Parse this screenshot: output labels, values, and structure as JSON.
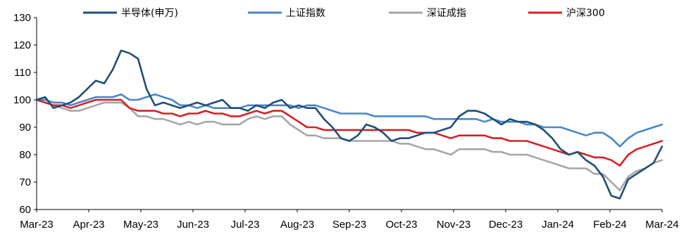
{
  "chart_data": {
    "type": "line",
    "title": "",
    "xlabel": "",
    "ylabel": "",
    "ylim": [
      60,
      130
    ],
    "yticks": [
      60,
      70,
      80,
      90,
      100,
      110,
      120,
      130
    ],
    "x_tick_labels": [
      "Mar-23",
      "Apr-23",
      "May-23",
      "Jun-23",
      "Jul-23",
      "Aug-23",
      "Sep-23",
      "Oct-23",
      "Nov-23",
      "Dec-23",
      "Jan-24",
      "Feb-24",
      "Mar-24"
    ],
    "grid": false,
    "legend_position": "top",
    "series": [
      {
        "name": "半导体(申万)",
        "color": "#1f4e79",
        "values": [
          100,
          101,
          97,
          98,
          99,
          101,
          104,
          107,
          106,
          111,
          118,
          117,
          115,
          104,
          98,
          99,
          98,
          97,
          98,
          99,
          98,
          99,
          100,
          97,
          97,
          96,
          98,
          97,
          99,
          100,
          97,
          98,
          97,
          97,
          93,
          90,
          86,
          85,
          87,
          91,
          90,
          88,
          85,
          86,
          86,
          87,
          88,
          88,
          89,
          90,
          94,
          96,
          96,
          95,
          93,
          91,
          93,
          92,
          92,
          91,
          89,
          86,
          82,
          80,
          81,
          78,
          76,
          72,
          65,
          64,
          71,
          73,
          75,
          77,
          83
        ]
      },
      {
        "name": "上证指数",
        "color": "#4a86c8",
        "values": [
          100,
          100,
          99,
          99,
          98,
          99,
          100,
          101,
          101,
          101,
          102,
          100,
          100,
          101,
          102,
          101,
          100,
          98,
          98,
          97,
          98,
          97,
          97,
          97,
          97,
          98,
          98,
          98,
          98,
          98,
          98,
          97,
          98,
          98,
          97,
          96,
          95,
          95,
          95,
          95,
          94,
          94,
          94,
          94,
          94,
          94,
          94,
          93,
          93,
          93,
          93,
          93,
          93,
          92,
          93,
          92,
          92,
          92,
          91,
          91,
          90,
          90,
          90,
          89,
          88,
          87,
          88,
          88,
          86,
          83,
          86,
          88,
          89,
          90,
          91
        ]
      },
      {
        "name": "深证成指",
        "color": "#a6a6a6",
        "values": [
          100,
          99,
          98,
          97,
          96,
          96,
          97,
          98,
          99,
          99,
          99,
          97,
          94,
          94,
          93,
          93,
          92,
          91,
          92,
          91,
          92,
          92,
          91,
          91,
          91,
          93,
          94,
          93,
          94,
          94,
          91,
          89,
          87,
          87,
          86,
          86,
          86,
          85,
          85,
          85,
          85,
          85,
          85,
          84,
          84,
          83,
          82,
          82,
          81,
          80,
          82,
          82,
          82,
          82,
          81,
          81,
          80,
          80,
          80,
          79,
          78,
          77,
          76,
          75,
          75,
          75,
          73,
          73,
          70,
          67,
          72,
          74,
          75,
          77,
          78
        ]
      },
      {
        "name": "沪深300",
        "color": "#d62027",
        "values": [
          100,
          99,
          98,
          98,
          97,
          98,
          99,
          100,
          100,
          100,
          100,
          97,
          96,
          96,
          96,
          95,
          95,
          94,
          95,
          95,
          96,
          95,
          95,
          94,
          94,
          95,
          96,
          95,
          96,
          96,
          94,
          92,
          90,
          90,
          89,
          89,
          89,
          89,
          89,
          89,
          89,
          89,
          89,
          89,
          89,
          88,
          88,
          88,
          87,
          86,
          87,
          87,
          87,
          87,
          86,
          86,
          85,
          85,
          85,
          84,
          83,
          82,
          81,
          80,
          81,
          80,
          79,
          79,
          78,
          76,
          80,
          82,
          83,
          84,
          85
        ]
      }
    ]
  }
}
